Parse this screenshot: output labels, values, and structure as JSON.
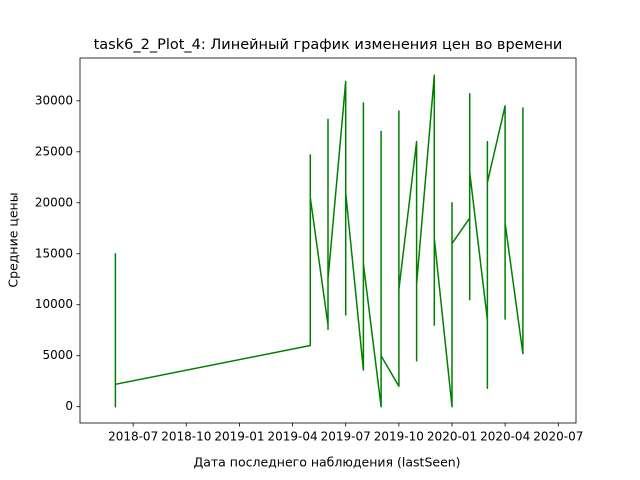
{
  "chart_data": {
    "type": "line",
    "title": "task6_2_Plot_4: Линейный график изменения цен во времени",
    "xlabel": "Дата последнего наблюдения (lastSeen)",
    "ylabel": "Средние цены",
    "color": "#008000",
    "x": [
      "2018-06",
      "2018-06",
      "2018-06",
      "2018-06",
      "2018-06",
      "2018-06",
      "2018-06",
      "2018-06",
      "2018-06",
      "2018-06",
      "2018-06",
      "2018-06",
      "2018-06",
      "2018-06",
      "2019-05",
      "2019-05",
      "2019-05",
      "2019-05",
      "2019-05",
      "2019-05",
      "2019-06",
      "2019-06",
      "2019-06",
      "2019-06",
      "2019-06",
      "2019-06",
      "2019-06",
      "2019-07",
      "2019-07",
      "2019-07",
      "2019-07",
      "2019-07",
      "2019-07",
      "2019-07",
      "2019-08",
      "2019-08",
      "2019-08",
      "2019-08",
      "2019-08",
      "2019-08",
      "2019-08",
      "2019-09",
      "2019-09",
      "2019-09",
      "2019-09",
      "2019-09",
      "2019-09",
      "2019-09",
      "2019-10",
      "2019-10",
      "2019-10",
      "2019-10",
      "2019-10",
      "2019-10",
      "2019-11",
      "2019-11",
      "2019-11",
      "2019-11",
      "2019-11",
      "2019-11",
      "2019-12",
      "2019-12",
      "2019-12",
      "2019-12",
      "2019-12",
      "2019-12",
      "2019-12",
      "2020-01",
      "2020-01",
      "2020-01",
      "2020-02",
      "2020-02",
      "2020-02",
      "2020-02",
      "2020-02",
      "2020-02",
      "2020-03",
      "2020-03",
      "2020-03",
      "2020-03",
      "2020-03",
      "2020-03",
      "2020-04",
      "2020-04",
      "2020-04",
      "2020-04",
      "2020-04",
      "2020-05",
      "2020-05",
      "2020-05",
      "2020-05",
      "2020-05",
      "2020-05",
      "2020-05"
    ],
    "values": [
      9900,
      11300,
      5000,
      10000,
      0,
      9500,
      0,
      15000,
      6500,
      10500,
      7000,
      12900,
      6500,
      2200,
      6000,
      21000,
      13500,
      24700,
      12000,
      20500,
      8000,
      28200,
      10500,
      22000,
      7600,
      19500,
      12500,
      31900,
      10000,
      22500,
      14000,
      18000,
      9000,
      21000,
      3600,
      29800,
      12000,
      29000,
      6000,
      20000,
      14000,
      0,
      20200,
      9500,
      27000,
      13000,
      18500,
      5000,
      2000,
      29000,
      16000,
      4500,
      20000,
      11500,
      26000,
      9000,
      22000,
      4500,
      20500,
      12000,
      32500,
      8000,
      29500,
      10000,
      25000,
      8700,
      16500,
      0,
      20000,
      16000,
      18500,
      26000,
      10500,
      30700,
      13000,
      23000,
      8500,
      26000,
      12000,
      24000,
      1800,
      22000,
      29500,
      9000,
      23000,
      8600,
      18000,
      5200,
      28700,
      11000,
      29300,
      10800,
      17000,
      15500
    ],
    "xlim": [
      "2018-04",
      "2020-08"
    ],
    "xticks": [
      "2018-07",
      "2018-10",
      "2019-01",
      "2019-04",
      "2019-07",
      "2019-10",
      "2020-01",
      "2020-04",
      "2020-07"
    ],
    "ylim": [
      -1600,
      34200
    ],
    "yticks": [
      0,
      5000,
      10000,
      15000,
      20000,
      25000,
      30000
    ],
    "grid": false
  }
}
